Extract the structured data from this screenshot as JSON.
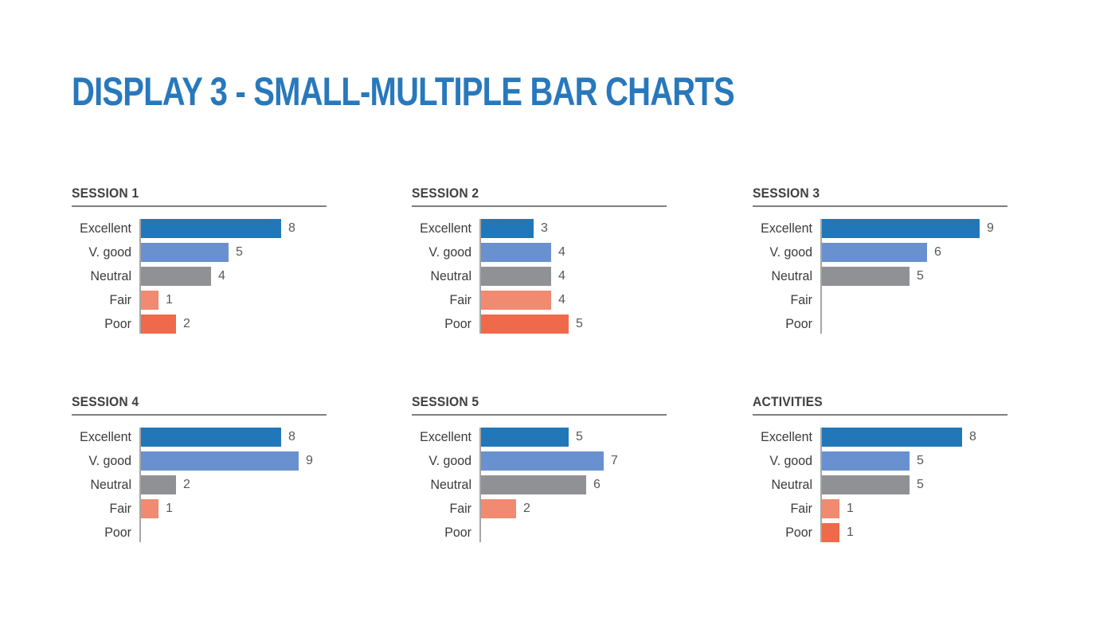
{
  "page_title": "DISPLAY 3 - SMALL-MULTIPLE BAR CHARTS",
  "colors": {
    "title": "#2878bc",
    "header_text": "#404040",
    "rule": "#7f7f7f",
    "axis": "#a6a6a6",
    "category_label": "#3b3b3b",
    "value_label": "#595959",
    "series": [
      "#2277b9",
      "#6991cf",
      "#909194",
      "#f08a70",
      "#ef6a4b"
    ]
  },
  "series_color_names": {
    "Excellent": "#2277b9",
    "V. good": "#6991cf",
    "Neutral": "#909194",
    "Fair": "#f08a70",
    "Poor": "#ef6a4b"
  },
  "chart_data": [
    {
      "type": "bar",
      "orientation": "horizontal",
      "title": "SESSION 1",
      "categories": [
        "Excellent",
        "V. good",
        "Neutral",
        "Fair",
        "Poor"
      ],
      "values": [
        8,
        5,
        4,
        1,
        2
      ],
      "xlim": [
        0,
        9
      ],
      "grid": false,
      "legend": false
    },
    {
      "type": "bar",
      "orientation": "horizontal",
      "title": "SESSION 2",
      "categories": [
        "Excellent",
        "V. good",
        "Neutral",
        "Fair",
        "Poor"
      ],
      "values": [
        3,
        4,
        4,
        4,
        5
      ],
      "xlim": [
        0,
        9
      ],
      "grid": false,
      "legend": false
    },
    {
      "type": "bar",
      "orientation": "horizontal",
      "title": "SESSION 3",
      "categories": [
        "Excellent",
        "V. good",
        "Neutral",
        "Fair",
        "Poor"
      ],
      "values": [
        9,
        6,
        5,
        null,
        null
      ],
      "xlim": [
        0,
        9
      ],
      "grid": false,
      "legend": false
    },
    {
      "type": "bar",
      "orientation": "horizontal",
      "title": "SESSION 4",
      "categories": [
        "Excellent",
        "V. good",
        "Neutral",
        "Fair",
        "Poor"
      ],
      "values": [
        8,
        9,
        2,
        1,
        null
      ],
      "xlim": [
        0,
        9
      ],
      "grid": false,
      "legend": false
    },
    {
      "type": "bar",
      "orientation": "horizontal",
      "title": "SESSION 5",
      "categories": [
        "Excellent",
        "V. good",
        "Neutral",
        "Fair",
        "Poor"
      ],
      "values": [
        5,
        7,
        6,
        2,
        null
      ],
      "xlim": [
        0,
        9
      ],
      "grid": false,
      "legend": false
    },
    {
      "type": "bar",
      "orientation": "horizontal",
      "title": "ACTIVITIES",
      "categories": [
        "Excellent",
        "V. good",
        "Neutral",
        "Fair",
        "Poor"
      ],
      "values": [
        8,
        5,
        5,
        1,
        1
      ],
      "xlim": [
        0,
        9
      ],
      "grid": false,
      "legend": false
    }
  ]
}
